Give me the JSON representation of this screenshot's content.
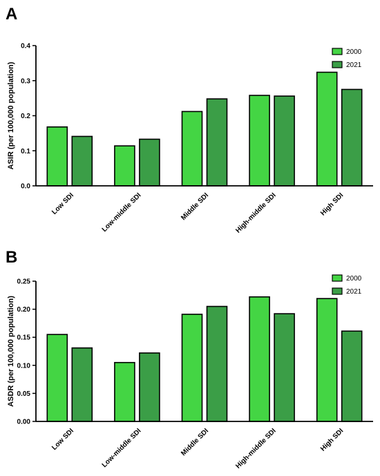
{
  "chart_data": [
    {
      "type": "bar",
      "panel": "A",
      "ylabel": "ASIR (per 100,000 population)",
      "xlabel": "",
      "categories": [
        "Low SDI",
        "Low-middle SDI",
        "Middle SDI",
        "High-middle SDI",
        "High SDI"
      ],
      "series": [
        {
          "name": "2000",
          "color": "#44d544",
          "values": [
            0.168,
            0.114,
            0.212,
            0.258,
            0.324
          ]
        },
        {
          "name": "2021",
          "color": "#3b9e47",
          "values": [
            0.141,
            0.133,
            0.248,
            0.256,
            0.275
          ]
        }
      ],
      "ylim": [
        0,
        0.4
      ],
      "yticks": [
        "0.0",
        "0.1",
        "0.2",
        "0.3",
        "0.4"
      ],
      "legend": "top-right",
      "grid": false
    },
    {
      "type": "bar",
      "panel": "B",
      "ylabel": "ASDR (per 100,000 population)",
      "xlabel": "",
      "categories": [
        "Low SDI",
        "Low-middle SDI",
        "Middle SDI",
        "High-middle SDI",
        "High SDI"
      ],
      "series": [
        {
          "name": "2000",
          "color": "#44d544",
          "values": [
            0.155,
            0.105,
            0.191,
            0.222,
            0.219
          ]
        },
        {
          "name": "2021",
          "color": "#3b9e47",
          "values": [
            0.131,
            0.122,
            0.205,
            0.192,
            0.161
          ]
        }
      ],
      "ylim": [
        0,
        0.25
      ],
      "yticks": [
        "0.00",
        "0.05",
        "0.10",
        "0.15",
        "0.20",
        "0.25"
      ],
      "legend": "top-right",
      "grid": false
    }
  ]
}
